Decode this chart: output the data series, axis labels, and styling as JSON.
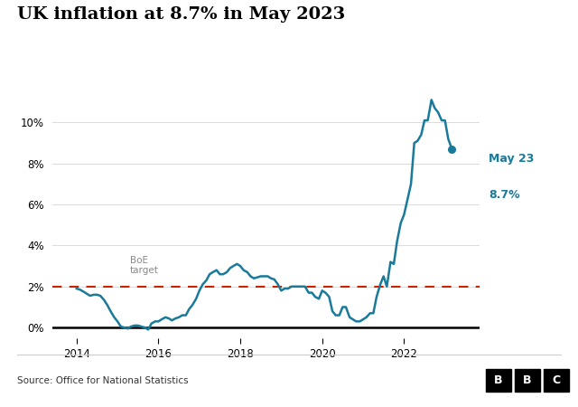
{
  "title": "UK inflation at 8.7% in May 2023",
  "source_text": "Source: Office for National Statistics",
  "boe_label": "BoE\ntarget",
  "line_color": "#1a7a9a",
  "boe_color": "#cc2200",
  "annotation_color": "#1a7a9a",
  "background_color": "#ffffff",
  "footer_bg": "#1a1a1a",
  "footer_text_color": "#ffffff",
  "bbc_letters": [
    "B",
    "B",
    "C"
  ],
  "ylim": [
    -0.5,
    12.0
  ],
  "yticks": [
    0,
    2,
    4,
    6,
    8,
    10
  ],
  "xticks": [
    2014,
    2016,
    2018,
    2020,
    2022
  ],
  "xlim": [
    2013.4,
    2023.85
  ],
  "boe_target": 2.0,
  "data": [
    [
      2014.0,
      1.9
    ],
    [
      2014.08,
      1.85
    ],
    [
      2014.17,
      1.75
    ],
    [
      2014.25,
      1.65
    ],
    [
      2014.33,
      1.55
    ],
    [
      2014.42,
      1.6
    ],
    [
      2014.5,
      1.6
    ],
    [
      2014.58,
      1.55
    ],
    [
      2014.67,
      1.35
    ],
    [
      2014.75,
      1.1
    ],
    [
      2014.83,
      0.8
    ],
    [
      2014.92,
      0.5
    ],
    [
      2015.0,
      0.3
    ],
    [
      2015.08,
      0.05
    ],
    [
      2015.17,
      0.0
    ],
    [
      2015.25,
      -0.05
    ],
    [
      2015.33,
      0.05
    ],
    [
      2015.42,
      0.1
    ],
    [
      2015.5,
      0.1
    ],
    [
      2015.58,
      0.05
    ],
    [
      2015.67,
      0.0
    ],
    [
      2015.75,
      -0.1
    ],
    [
      2015.83,
      0.2
    ],
    [
      2015.92,
      0.3
    ],
    [
      2016.0,
      0.3
    ],
    [
      2016.08,
      0.4
    ],
    [
      2016.17,
      0.5
    ],
    [
      2016.25,
      0.45
    ],
    [
      2016.33,
      0.35
    ],
    [
      2016.42,
      0.45
    ],
    [
      2016.5,
      0.5
    ],
    [
      2016.58,
      0.6
    ],
    [
      2016.67,
      0.6
    ],
    [
      2016.75,
      0.9
    ],
    [
      2016.83,
      1.1
    ],
    [
      2016.92,
      1.4
    ],
    [
      2017.0,
      1.8
    ],
    [
      2017.08,
      2.1
    ],
    [
      2017.17,
      2.3
    ],
    [
      2017.25,
      2.6
    ],
    [
      2017.33,
      2.7
    ],
    [
      2017.42,
      2.8
    ],
    [
      2017.5,
      2.6
    ],
    [
      2017.58,
      2.6
    ],
    [
      2017.67,
      2.7
    ],
    [
      2017.75,
      2.9
    ],
    [
      2017.83,
      3.0
    ],
    [
      2017.92,
      3.1
    ],
    [
      2018.0,
      3.0
    ],
    [
      2018.08,
      2.8
    ],
    [
      2018.17,
      2.7
    ],
    [
      2018.25,
      2.5
    ],
    [
      2018.33,
      2.4
    ],
    [
      2018.42,
      2.45
    ],
    [
      2018.5,
      2.5
    ],
    [
      2018.58,
      2.5
    ],
    [
      2018.67,
      2.5
    ],
    [
      2018.75,
      2.4
    ],
    [
      2018.83,
      2.35
    ],
    [
      2018.92,
      2.1
    ],
    [
      2019.0,
      1.8
    ],
    [
      2019.08,
      1.9
    ],
    [
      2019.17,
      1.9
    ],
    [
      2019.25,
      2.0
    ],
    [
      2019.33,
      2.0
    ],
    [
      2019.42,
      2.0
    ],
    [
      2019.5,
      2.0
    ],
    [
      2019.58,
      2.0
    ],
    [
      2019.67,
      1.7
    ],
    [
      2019.75,
      1.7
    ],
    [
      2019.83,
      1.5
    ],
    [
      2019.92,
      1.4
    ],
    [
      2020.0,
      1.8
    ],
    [
      2020.08,
      1.7
    ],
    [
      2020.17,
      1.5
    ],
    [
      2020.25,
      0.8
    ],
    [
      2020.33,
      0.6
    ],
    [
      2020.42,
      0.6
    ],
    [
      2020.5,
      1.0
    ],
    [
      2020.58,
      1.0
    ],
    [
      2020.67,
      0.5
    ],
    [
      2020.75,
      0.4
    ],
    [
      2020.83,
      0.3
    ],
    [
      2020.92,
      0.3
    ],
    [
      2021.0,
      0.4
    ],
    [
      2021.08,
      0.5
    ],
    [
      2021.17,
      0.7
    ],
    [
      2021.25,
      0.7
    ],
    [
      2021.33,
      1.5
    ],
    [
      2021.42,
      2.1
    ],
    [
      2021.5,
      2.5
    ],
    [
      2021.58,
      2.0
    ],
    [
      2021.67,
      3.2
    ],
    [
      2021.75,
      3.1
    ],
    [
      2021.83,
      4.2
    ],
    [
      2021.92,
      5.1
    ],
    [
      2022.0,
      5.5
    ],
    [
      2022.08,
      6.2
    ],
    [
      2022.17,
      7.0
    ],
    [
      2022.25,
      9.0
    ],
    [
      2022.33,
      9.1
    ],
    [
      2022.42,
      9.4
    ],
    [
      2022.5,
      10.1
    ],
    [
      2022.58,
      10.1
    ],
    [
      2022.67,
      11.1
    ],
    [
      2022.75,
      10.7
    ],
    [
      2022.83,
      10.5
    ],
    [
      2022.92,
      10.1
    ],
    [
      2023.0,
      10.1
    ],
    [
      2023.08,
      9.2
    ],
    [
      2023.17,
      8.7
    ]
  ]
}
